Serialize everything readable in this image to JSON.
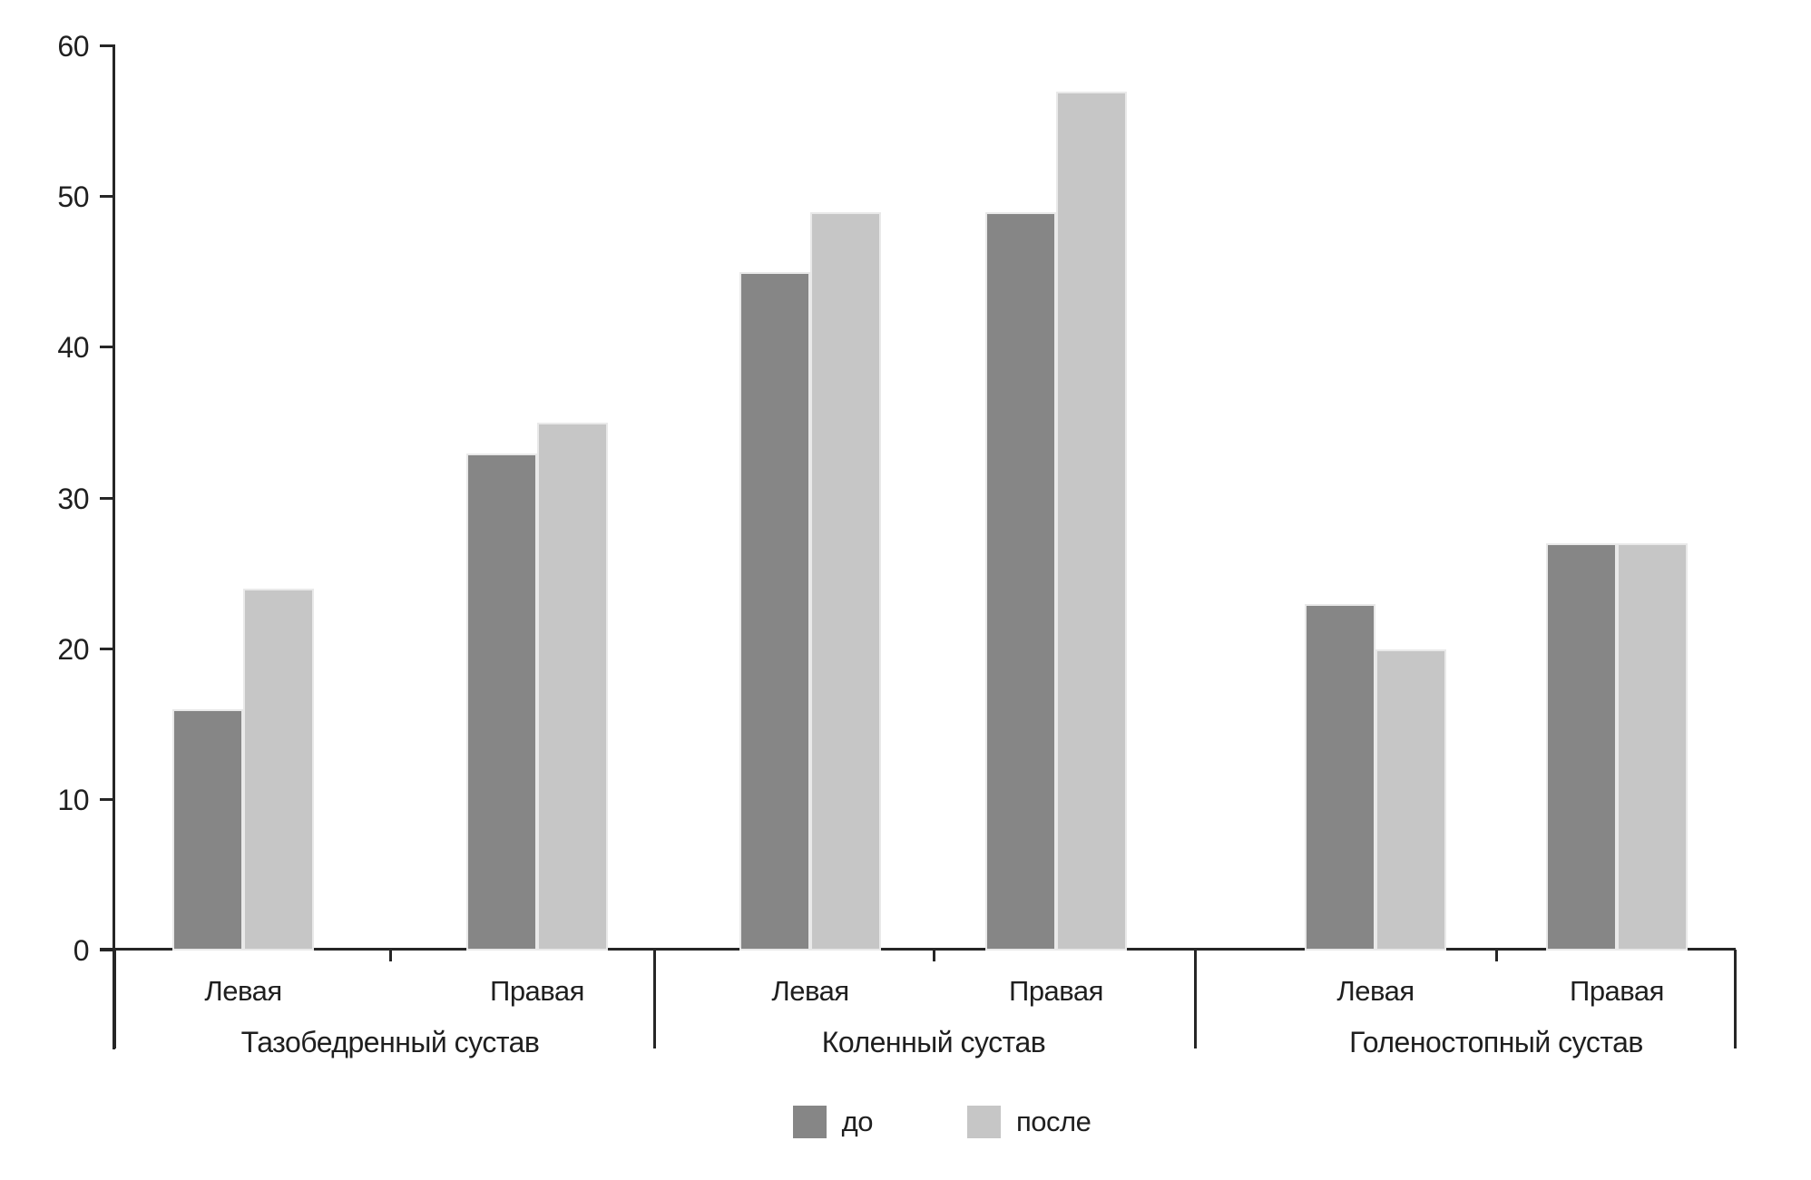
{
  "figure": {
    "background": "#ffffff",
    "axis_color": "#262626",
    "text_color": "#1f1f1f"
  },
  "chart_data": {
    "type": "bar",
    "title": "",
    "xlabel": "",
    "ylabel": "",
    "ylim": [
      0,
      60
    ],
    "yticks": [
      0,
      10,
      20,
      30,
      40,
      50,
      60
    ],
    "grid": false,
    "legend_position": "bottom-center",
    "series": [
      {
        "name": "до",
        "color": "#868686"
      },
      {
        "name": "после",
        "color": "#c6c6c6"
      }
    ],
    "groups": [
      {
        "label": "Тазобедренный сустав",
        "items": [
          {
            "label": "Левая",
            "values": [
              16,
              24
            ]
          },
          {
            "label": "Правая",
            "values": [
              33,
              35
            ]
          }
        ]
      },
      {
        "label": "Коленный сустав",
        "items": [
          {
            "label": "Левая",
            "values": [
              45,
              49
            ]
          },
          {
            "label": "Правая",
            "values": [
              49,
              57
            ]
          }
        ]
      },
      {
        "label": "Голеностопный сустав",
        "items": [
          {
            "label": "Левая",
            "values": [
              23,
              20
            ]
          },
          {
            "label": "Правая",
            "values": [
              27,
              27
            ]
          }
        ]
      }
    ]
  }
}
